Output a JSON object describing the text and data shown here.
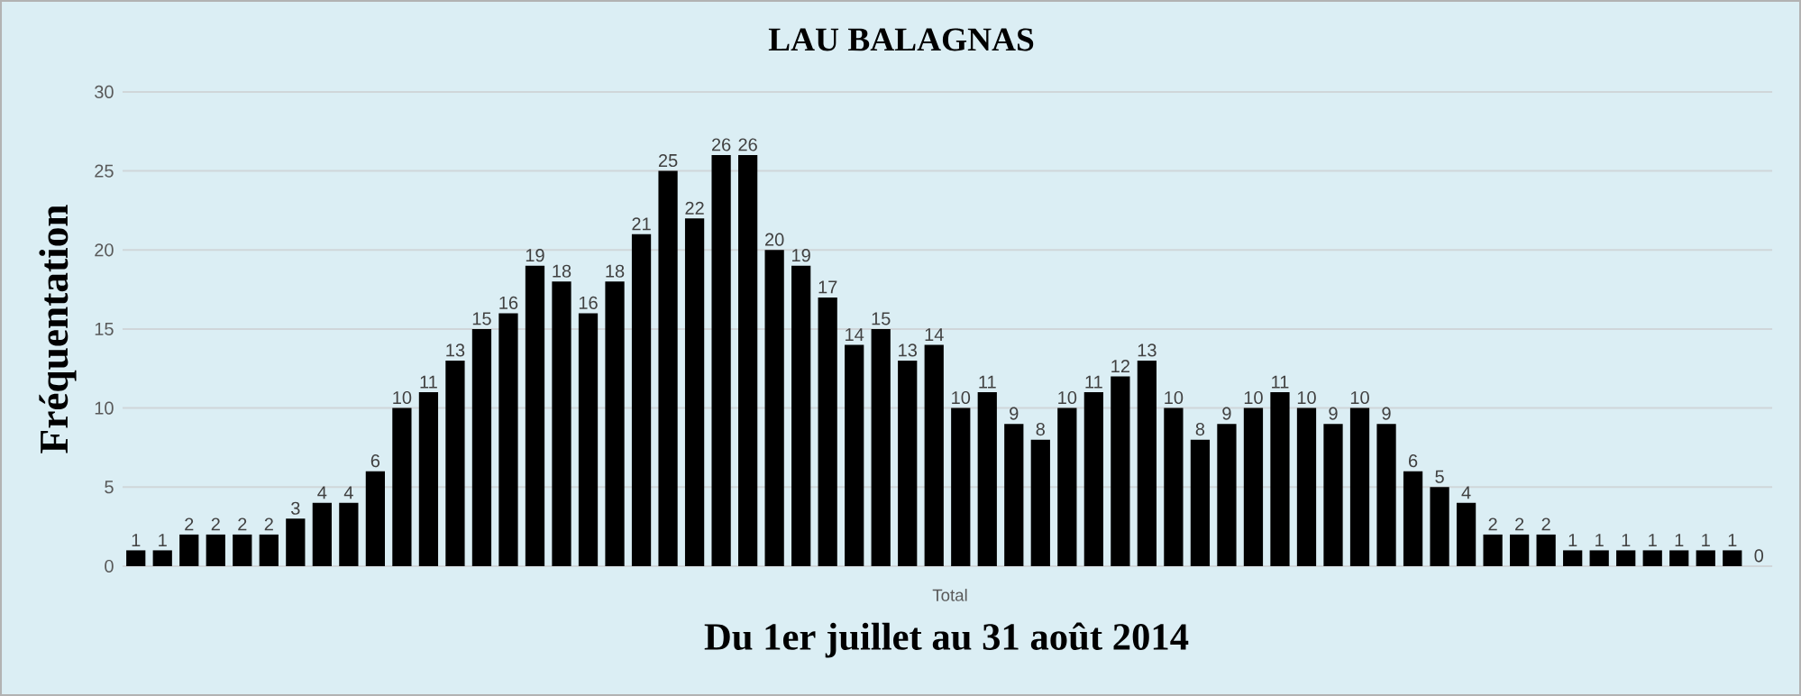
{
  "chart_data": {
    "type": "bar",
    "title": "LAU BALAGNAS",
    "xlabel": "Du 1er juillet au 31 août 2014",
    "ylabel": "Fréquentation",
    "annotations": [
      "Total"
    ],
    "categories": [
      null,
      null,
      null,
      null,
      null,
      null,
      null,
      null,
      null,
      null,
      null,
      null,
      null,
      null,
      null,
      null,
      null,
      null,
      null,
      null,
      null,
      null,
      null,
      null,
      null,
      null,
      null,
      null,
      null,
      null,
      null,
      null,
      null,
      null,
      null,
      null,
      null,
      null,
      null,
      null,
      null,
      null,
      null,
      null,
      null,
      null,
      null,
      null,
      null,
      null,
      null,
      null,
      null,
      null,
      null,
      null,
      null,
      null,
      null,
      null,
      null,
      null
    ],
    "values": [
      1,
      1,
      2,
      2,
      2,
      2,
      3,
      4,
      4,
      6,
      10,
      11,
      13,
      15,
      16,
      19,
      18,
      16,
      18,
      21,
      25,
      22,
      26,
      26,
      20,
      19,
      17,
      14,
      15,
      13,
      14,
      10,
      11,
      9,
      8,
      10,
      11,
      12,
      13,
      10,
      8,
      9,
      10,
      11,
      10,
      9,
      10,
      9,
      6,
      5,
      4,
      2,
      2,
      2,
      1,
      1,
      1,
      1,
      1,
      1,
      1,
      0
    ],
    "value_labels": [
      "1",
      "1",
      "2",
      "2",
      "2",
      "2",
      "3",
      "4",
      "4",
      "6",
      "10",
      "11",
      "13",
      "15",
      "16",
      "19",
      "18",
      "16",
      "18",
      "21",
      "25",
      "22",
      "26",
      "26",
      "20",
      "19",
      "17",
      "14",
      "15",
      "13",
      "14",
      "10",
      "11",
      "9",
      "8",
      "10",
      "11",
      "12",
      "13",
      "10",
      "8",
      "9",
      "10",
      "11",
      "10",
      "9",
      "10",
      "9",
      "6",
      "5",
      "4",
      "2",
      "2",
      "2",
      "1",
      "1",
      "1",
      "1",
      "1",
      "1",
      "1",
      "0"
    ],
    "color": "#000000",
    "ylim": [
      0,
      30
    ],
    "yticks": [
      0,
      5,
      10,
      15,
      20,
      25,
      30
    ],
    "grid": "y"
  }
}
